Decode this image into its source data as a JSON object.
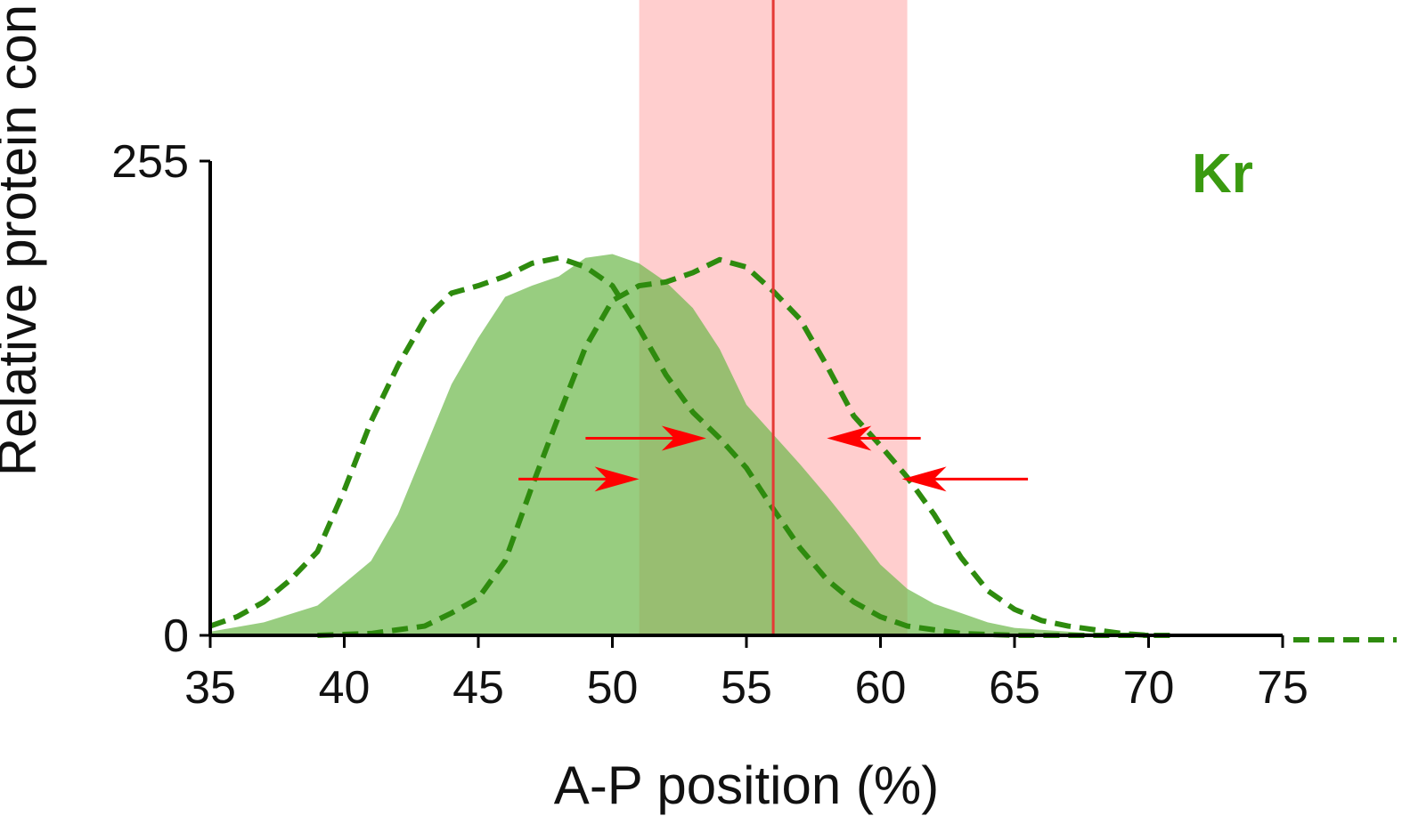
{
  "chart_data": {
    "type": "area",
    "title": "",
    "xlabel": "A-P position (%)",
    "ylabel": "Relative protein  con",
    "xlim": [
      35,
      75
    ],
    "ylim": [
      0,
      255
    ],
    "x_ticks": [
      "35",
      "40",
      "45",
      "50",
      "55",
      "60",
      "65",
      "70",
      "75"
    ],
    "y_ticks": [
      "0",
      "255"
    ],
    "grid": false,
    "annotation_label": "Kr",
    "colors": {
      "green_fill": "#6cb84a",
      "green_line": "#2e8b0e",
      "band": "#ffb3b3",
      "marker_line": "#e53935",
      "arrow": "#ff0000",
      "label": "#3a9a10"
    },
    "highlight_band": {
      "x_start": 51,
      "x_end": 61
    },
    "marker_line_x": 56,
    "series": [
      {
        "style": "filled",
        "points": [
          [
            35,
            2
          ],
          [
            37,
            7
          ],
          [
            39,
            16
          ],
          [
            40,
            28
          ],
          [
            41,
            40
          ],
          [
            42,
            65
          ],
          [
            43,
            100
          ],
          [
            44,
            135
          ],
          [
            45,
            160
          ],
          [
            46,
            182
          ],
          [
            47,
            188
          ],
          [
            48,
            193
          ],
          [
            49,
            203
          ],
          [
            50,
            205
          ],
          [
            51,
            200
          ],
          [
            52,
            190
          ],
          [
            53,
            176
          ],
          [
            54,
            154
          ],
          [
            55,
            124
          ],
          [
            56,
            108
          ],
          [
            57,
            92
          ],
          [
            58,
            75
          ],
          [
            59,
            57
          ],
          [
            60,
            38
          ],
          [
            61,
            25
          ],
          [
            62,
            17
          ],
          [
            63,
            12
          ],
          [
            64,
            7
          ],
          [
            65,
            4
          ],
          [
            66,
            3
          ],
          [
            68,
            1
          ],
          [
            70,
            0
          ],
          [
            75,
            0
          ]
        ]
      },
      {
        "style": "dashed",
        "points": [
          [
            35,
            5
          ],
          [
            36,
            10
          ],
          [
            37,
            18
          ],
          [
            38,
            30
          ],
          [
            39,
            45
          ],
          [
            40,
            78
          ],
          [
            41,
            115
          ],
          [
            42,
            145
          ],
          [
            43,
            170
          ],
          [
            44,
            184
          ],
          [
            45,
            188
          ],
          [
            46,
            193
          ],
          [
            47,
            200
          ],
          [
            48,
            203
          ],
          [
            49,
            198
          ],
          [
            50,
            188
          ],
          [
            51,
            165
          ],
          [
            52,
            140
          ],
          [
            53,
            120
          ],
          [
            54,
            106
          ],
          [
            55,
            90
          ],
          [
            56,
            68
          ],
          [
            57,
            47
          ],
          [
            58,
            30
          ],
          [
            59,
            18
          ],
          [
            60,
            10
          ],
          [
            61,
            5
          ],
          [
            62,
            3
          ],
          [
            63,
            1
          ],
          [
            65,
            0
          ],
          [
            70,
            0
          ]
        ]
      },
      {
        "style": "dashed",
        "points": [
          [
            39,
            0
          ],
          [
            41,
            1
          ],
          [
            43,
            5
          ],
          [
            44,
            12
          ],
          [
            45,
            20
          ],
          [
            46,
            40
          ],
          [
            47,
            80
          ],
          [
            48,
            118
          ],
          [
            49,
            155
          ],
          [
            50,
            180
          ],
          [
            51,
            188
          ],
          [
            52,
            190
          ],
          [
            53,
            195
          ],
          [
            54,
            202
          ],
          [
            55,
            198
          ],
          [
            56,
            185
          ],
          [
            57,
            170
          ],
          [
            58,
            145
          ],
          [
            59,
            118
          ],
          [
            60,
            102
          ],
          [
            61,
            85
          ],
          [
            62,
            65
          ],
          [
            63,
            42
          ],
          [
            64,
            24
          ],
          [
            65,
            14
          ],
          [
            66,
            8
          ],
          [
            67,
            5
          ],
          [
            68,
            3
          ],
          [
            69,
            1
          ],
          [
            70,
            0
          ],
          [
            71,
            0
          ]
        ]
      }
    ],
    "arrows": [
      {
        "direction": "right",
        "x_from": 49,
        "x_to": 53.5,
        "y": 106
      },
      {
        "direction": "right",
        "x_from": 46.5,
        "x_to": 51,
        "y": 84
      },
      {
        "direction": "left",
        "x_from": 61.5,
        "x_to": 58,
        "y": 106
      },
      {
        "direction": "left",
        "x_from": 65.5,
        "x_to": 60.8,
        "y": 84
      }
    ]
  }
}
